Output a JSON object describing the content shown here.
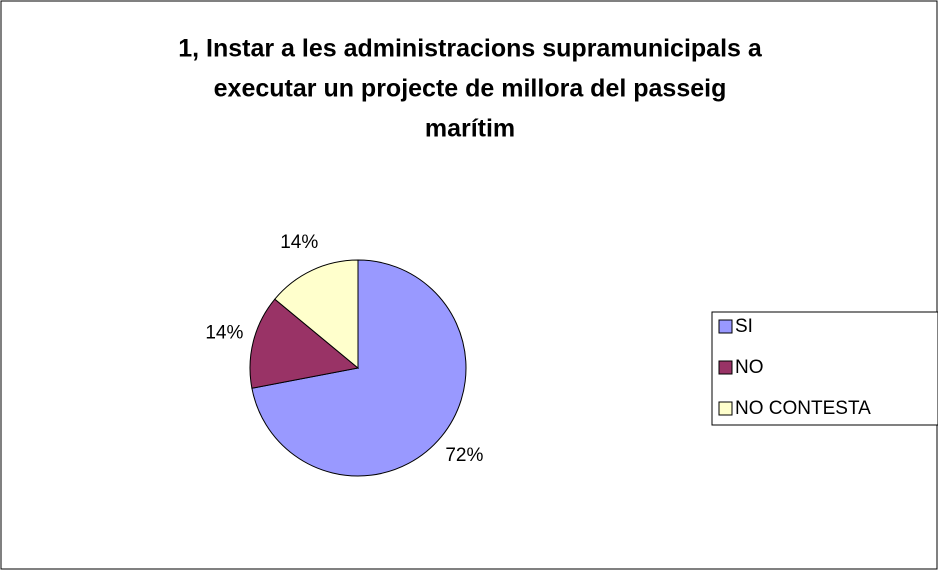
{
  "chart_data": {
    "type": "pie",
    "title": [
      "1, Instar a les administracions supramunicipals a",
      "executar un projecte de millora del passeig",
      "marítim"
    ],
    "categories": [
      "SI",
      "NO",
      "NO CONTESTA"
    ],
    "values": [
      72,
      14,
      14
    ],
    "value_labels": [
      "72%",
      "14%",
      "14%"
    ],
    "colors": [
      "#9999ff",
      "#993366",
      "#ffffcc"
    ],
    "legend": "right"
  }
}
